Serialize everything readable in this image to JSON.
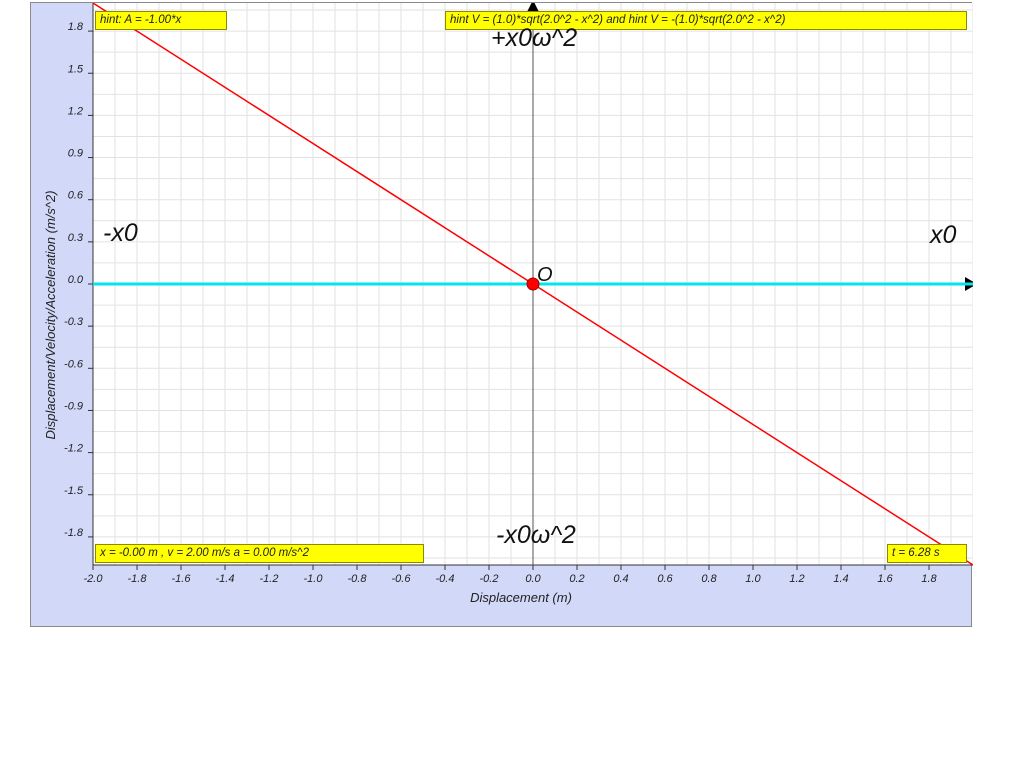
{
  "colors": {
    "panel_bg": "#d2d8f8",
    "plot_bg": "#ffffff",
    "grid": "#e2e2e2",
    "accel_line": "#ff0000",
    "velocity_line": "#00e5ee",
    "marker": "#ff0000",
    "hint_bg": "#ffff00"
  },
  "labels": {
    "hint_accel": "hint: A = -1.00*x",
    "hint_velocity": "hint V = (1.0)*sqrt(2.0^2 - x^2) and hint V = -(1.0)*sqrt(2.0^2 - x^2)",
    "state_readout": "x = -0.00 m , v = 2.00 m/s a = 0.00 m/s^2",
    "time_readout": "t = 6.28 s",
    "neg_amplitude": "-x0",
    "pos_amplitude": "x0",
    "max_accel": "+x0ω^2",
    "min_accel": "-x0ω^2",
    "origin": "O"
  },
  "chart_data": {
    "type": "line",
    "xlabel": "Displacement (m)",
    "ylabel": "Displacement/Velocity/Acceleration (m/s^2)",
    "xlim": [
      -2.0,
      2.0
    ],
    "ylim": [
      -2.0,
      2.0
    ],
    "grid": true,
    "x_ticks": [
      -2.0,
      -1.8,
      -1.6,
      -1.4,
      -1.2,
      -1.0,
      -0.8,
      -0.6,
      -0.4,
      -0.2,
      0.0,
      0.2,
      0.4,
      0.6,
      0.8,
      1.0,
      1.2,
      1.4,
      1.6,
      1.8
    ],
    "y_ticks": [
      1.8,
      1.5,
      1.2,
      0.9,
      0.6,
      0.3,
      0.0,
      -0.3,
      -0.6,
      -0.9,
      -1.2,
      -1.5,
      -1.8
    ],
    "series": [
      {
        "x": [
          -2.0,
          2.0
        ],
        "y": [
          2.0,
          -2.0
        ],
        "color": "#ff0000"
      },
      {
        "x": [
          -2.0,
          2.0
        ],
        "y": [
          0.0,
          0.0
        ],
        "color": "#00e5ee"
      }
    ],
    "point": {
      "x": 0.0,
      "y": 0.0
    }
  }
}
